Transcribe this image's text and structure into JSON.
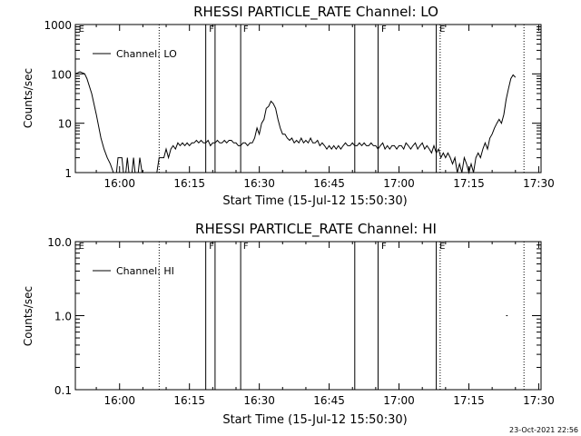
{
  "chart_data": [
    {
      "type": "line",
      "title": "RHESSI PARTICLE_RATE Channel: LO",
      "xlabel": "Start Time (15-Jul-12 15:50:30)",
      "ylabel": "Counts/sec",
      "y_scale": "log",
      "ylim": [
        1,
        1000
      ],
      "y_ticks": [
        {
          "value": 1,
          "label": "1"
        },
        {
          "value": 10,
          "label": "10"
        },
        {
          "value": 100,
          "label": "100"
        },
        {
          "value": 1000,
          "label": "1000"
        }
      ],
      "x_ticks": [
        "16:00",
        "16:15",
        "16:30",
        "16:45",
        "17:00",
        "17:15",
        "17:30"
      ],
      "legend": {
        "placement": "top-left",
        "label": "Channel: LO"
      },
      "grid": false,
      "series": [
        {
          "name": "Channel: LO",
          "points": [
            [
              "15:50:30",
              100
            ],
            [
              "15:51:30",
              110
            ],
            [
              "15:52:30",
              100
            ],
            [
              "15:53:00",
              80
            ],
            [
              "15:54:00",
              40
            ],
            [
              "15:55:00",
              15
            ],
            [
              "15:56:00",
              5
            ],
            [
              "15:56:40",
              3
            ],
            [
              "15:57:20",
              2
            ],
            [
              "15:58:00",
              1.5
            ],
            [
              "15:58:40",
              1
            ],
            [
              "15:59:20",
              1
            ],
            [
              "15:59:40",
              2
            ],
            [
              "16:00:30",
              2
            ],
            [
              "16:00:50",
              1
            ],
            [
              "16:01:20",
              1
            ],
            [
              "16:01:40",
              2
            ],
            [
              "16:02:00",
              1
            ],
            [
              "16:02:40",
              1
            ],
            [
              "16:03:00",
              2
            ],
            [
              "16:03:20",
              1
            ],
            [
              "16:04:00",
              1
            ],
            [
              "16:04:20",
              2
            ],
            [
              "16:04:50",
              1
            ],
            [
              "16:06:00",
              1
            ],
            [
              "16:07:00",
              1
            ],
            [
              "16:08:00",
              1
            ],
            [
              "16:08:30",
              2
            ],
            [
              "16:09:30",
              2
            ],
            [
              "16:10:00",
              3
            ],
            [
              "16:10:30",
              2
            ],
            [
              "16:11:00",
              3
            ],
            [
              "16:11:30",
              3.5
            ],
            [
              "16:12:00",
              3
            ],
            [
              "16:12:30",
              4
            ],
            [
              "16:13:00",
              3.5
            ],
            [
              "16:13:30",
              4
            ],
            [
              "16:14:00",
              3.5
            ],
            [
              "16:14:30",
              4
            ],
            [
              "16:15:00",
              3.5
            ],
            [
              "16:15:30",
              4
            ],
            [
              "16:16:00",
              4
            ],
            [
              "16:16:30",
              4.5
            ],
            [
              "16:17:00",
              4
            ],
            [
              "16:17:30",
              4.5
            ],
            [
              "16:18:00",
              4
            ],
            [
              "16:18:30",
              4
            ],
            [
              "16:19:00",
              4.5
            ],
            [
              "16:19:30",
              3.5
            ],
            [
              "16:20:00",
              4
            ],
            [
              "16:20:30",
              4
            ],
            [
              "16:21:00",
              4.5
            ],
            [
              "16:21:30",
              4
            ],
            [
              "16:22:00",
              4
            ],
            [
              "16:22:30",
              4.5
            ],
            [
              "16:23:00",
              4
            ],
            [
              "16:23:30",
              4.5
            ],
            [
              "16:24:00",
              4.5
            ],
            [
              "16:24:30",
              4
            ],
            [
              "16:25:00",
              4
            ],
            [
              "16:25:30",
              3.5
            ],
            [
              "16:26:00",
              3.5
            ],
            [
              "16:26:30",
              4
            ],
            [
              "16:27:00",
              4
            ],
            [
              "16:27:30",
              3.5
            ],
            [
              "16:28:00",
              4
            ],
            [
              "16:28:30",
              4
            ],
            [
              "16:29:00",
              5
            ],
            [
              "16:29:30",
              8
            ],
            [
              "16:30:00",
              6
            ],
            [
              "16:30:30",
              10
            ],
            [
              "16:31:00",
              12
            ],
            [
              "16:31:30",
              20
            ],
            [
              "16:32:00",
              22
            ],
            [
              "16:32:30",
              28
            ],
            [
              "16:33:00",
              25
            ],
            [
              "16:33:30",
              20
            ],
            [
              "16:34:00",
              12
            ],
            [
              "16:34:30",
              8
            ],
            [
              "16:35:00",
              6
            ],
            [
              "16:35:30",
              6
            ],
            [
              "16:36:00",
              5
            ],
            [
              "16:36:30",
              4.5
            ],
            [
              "16:37:00",
              5
            ],
            [
              "16:37:30",
              4
            ],
            [
              "16:38:00",
              4.5
            ],
            [
              "16:38:30",
              4
            ],
            [
              "16:39:00",
              5
            ],
            [
              "16:39:30",
              4
            ],
            [
              "16:40:00",
              4.5
            ],
            [
              "16:40:30",
              4
            ],
            [
              "16:41:00",
              5
            ],
            [
              "16:41:30",
              4
            ],
            [
              "16:42:00",
              4
            ],
            [
              "16:42:30",
              4.5
            ],
            [
              "16:43:00",
              3.5
            ],
            [
              "16:43:30",
              4
            ],
            [
              "16:44:00",
              3.5
            ],
            [
              "16:44:30",
              3
            ],
            [
              "16:45:00",
              3.5
            ],
            [
              "16:45:30",
              3
            ],
            [
              "16:46:00",
              3.5
            ],
            [
              "16:46:30",
              3
            ],
            [
              "16:47:00",
              3.5
            ],
            [
              "16:47:30",
              3
            ],
            [
              "16:48:00",
              3.5
            ],
            [
              "16:48:30",
              4
            ],
            [
              "16:49:00",
              3.5
            ],
            [
              "16:49:30",
              3.5
            ],
            [
              "16:50:00",
              4
            ],
            [
              "16:50:30",
              3.5
            ],
            [
              "16:51:00",
              3.5
            ],
            [
              "16:51:30",
              4
            ],
            [
              "16:52:00",
              3.5
            ],
            [
              "16:52:30",
              4
            ],
            [
              "16:53:00",
              3.5
            ],
            [
              "16:53:30",
              3.5
            ],
            [
              "16:54:00",
              4
            ],
            [
              "16:54:30",
              3.5
            ],
            [
              "16:55:00",
              3.5
            ],
            [
              "16:55:30",
              3
            ],
            [
              "16:56:00",
              3.5
            ],
            [
              "16:56:30",
              4
            ],
            [
              "16:57:00",
              3
            ],
            [
              "16:57:30",
              3.5
            ],
            [
              "16:58:00",
              3
            ],
            [
              "16:58:30",
              3.5
            ],
            [
              "16:59:00",
              3.5
            ],
            [
              "16:59:30",
              3
            ],
            [
              "17:00:00",
              3.5
            ],
            [
              "17:00:30",
              3.5
            ],
            [
              "17:01:00",
              3
            ],
            [
              "17:01:30",
              4
            ],
            [
              "17:02:00",
              3.5
            ],
            [
              "17:02:30",
              3
            ],
            [
              "17:03:00",
              3.5
            ],
            [
              "17:03:30",
              4
            ],
            [
              "17:04:00",
              3
            ],
            [
              "17:04:30",
              3.5
            ],
            [
              "17:05:00",
              4
            ],
            [
              "17:05:30",
              3
            ],
            [
              "17:06:00",
              3.5
            ],
            [
              "17:06:30",
              3
            ],
            [
              "17:07:00",
              2.5
            ],
            [
              "17:07:30",
              3.5
            ],
            [
              "17:08:00",
              2.5
            ],
            [
              "17:08:30",
              3
            ],
            [
              "17:09:00",
              2
            ],
            [
              "17:09:30",
              2.5
            ],
            [
              "17:10:00",
              2
            ],
            [
              "17:10:30",
              2.5
            ],
            [
              "17:11:00",
              2
            ],
            [
              "17:11:30",
              1.5
            ],
            [
              "17:12:00",
              2
            ],
            [
              "17:12:30",
              1
            ],
            [
              "17:13:00",
              1.5
            ],
            [
              "17:13:30",
              1
            ],
            [
              "17:14:00",
              2
            ],
            [
              "17:14:30",
              1.5
            ],
            [
              "17:15:00",
              1
            ],
            [
              "17:15:30",
              1.5
            ],
            [
              "17:16:00",
              1
            ],
            [
              "17:16:30",
              2
            ],
            [
              "17:17:00",
              2.5
            ],
            [
              "17:17:30",
              2
            ],
            [
              "17:18:00",
              3
            ],
            [
              "17:18:30",
              4
            ],
            [
              "17:19:00",
              3
            ],
            [
              "17:19:30",
              5
            ],
            [
              "17:20:00",
              6
            ],
            [
              "17:20:30",
              8
            ],
            [
              "17:21:00",
              10
            ],
            [
              "17:21:30",
              12
            ],
            [
              "17:22:00",
              10
            ],
            [
              "17:22:30",
              15
            ],
            [
              "17:23:00",
              30
            ],
            [
              "17:23:30",
              50
            ],
            [
              "17:24:00",
              80
            ],
            [
              "17:24:30",
              95
            ],
            [
              "17:25:00",
              85
            ]
          ]
        }
      ]
    },
    {
      "type": "line",
      "title": "RHESSI PARTICLE_RATE Channel: HI",
      "xlabel": "Start Time (15-Jul-12 15:50:30)",
      "ylabel": "Counts/sec",
      "y_scale": "log",
      "ylim": [
        0.1,
        10
      ],
      "y_ticks": [
        {
          "value": 0.1,
          "label": "0.1"
        },
        {
          "value": 1,
          "label": "1.0"
        },
        {
          "value": 10,
          "label": "10.0"
        }
      ],
      "x_ticks": [
        "16:00",
        "16:15",
        "16:30",
        "16:45",
        "17:00",
        "17:15",
        "17:30"
      ],
      "legend": {
        "placement": "top-left",
        "label": "Channel: HI"
      },
      "grid": false,
      "series": [
        {
          "name": "Channel: HI",
          "points": [
            [
              "17:23:00",
              1.0
            ],
            [
              "17:23:20",
              1.0
            ]
          ]
        }
      ]
    }
  ],
  "markers": {
    "solid": [
      "16:18:30",
      "16:20:30",
      "16:26:00",
      "16:50:30",
      "16:55:30",
      "17:08:00"
    ],
    "dotted": [
      "16:08:30",
      "17:08:50",
      "17:26:50"
    ],
    "letters_lo": [
      {
        "time": "15:51:00",
        "label": "E"
      },
      {
        "time": "16:19:00",
        "label": "F"
      },
      {
        "time": "16:26:20",
        "label": "F"
      },
      {
        "time": "16:56:00",
        "label": "F"
      },
      {
        "time": "17:08:30",
        "label": "E"
      }
    ],
    "letters_hi": [
      {
        "time": "15:51:00",
        "label": "E"
      },
      {
        "time": "16:19:00",
        "label": "F"
      },
      {
        "time": "16:26:20",
        "label": "F"
      },
      {
        "time": "16:56:00",
        "label": "F"
      },
      {
        "time": "17:08:30",
        "label": "E"
      }
    ]
  },
  "footer": {
    "timestamp": "23-Oct-2021 22:56"
  }
}
